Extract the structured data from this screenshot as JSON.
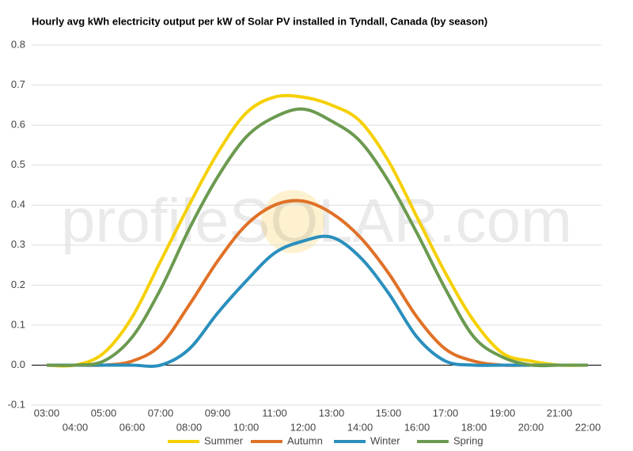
{
  "chart_data": {
    "type": "line",
    "title": "Hourly avg kWh electricity output per kW of Solar PV installed in Tyndall, Canada (by season)",
    "watermark": "profileSOLAR.com",
    "categories": [
      "03:00",
      "04:00",
      "05:00",
      "06:00",
      "07:00",
      "08:00",
      "09:00",
      "10:00",
      "11:00",
      "12:00",
      "13:00",
      "14:00",
      "15:00",
      "16:00",
      "17:00",
      "18:00",
      "19:00",
      "20:00",
      "21:00",
      "22:00"
    ],
    "series": [
      {
        "name": "Summer",
        "color": "#f5d000",
        "values": [
          0,
          0,
          0.03,
          0.12,
          0.26,
          0.4,
          0.53,
          0.63,
          0.67,
          0.67,
          0.65,
          0.61,
          0.51,
          0.37,
          0.23,
          0.11,
          0.03,
          0.01,
          0,
          0
        ]
      },
      {
        "name": "Autumn",
        "color": "#e07127",
        "values": [
          0,
          0,
          0,
          0.01,
          0.05,
          0.15,
          0.26,
          0.35,
          0.4,
          0.41,
          0.38,
          0.32,
          0.23,
          0.12,
          0.04,
          0.01,
          0,
          0,
          0,
          0
        ]
      },
      {
        "name": "Winter",
        "color": "#2a8fbd",
        "values": [
          0,
          0,
          0,
          0,
          0,
          0.04,
          0.13,
          0.21,
          0.28,
          0.31,
          0.32,
          0.27,
          0.18,
          0.07,
          0.01,
          0,
          0,
          0,
          0,
          0
        ]
      },
      {
        "name": "Spring",
        "color": "#6b9a4f",
        "values": [
          0,
          0,
          0.01,
          0.07,
          0.19,
          0.34,
          0.47,
          0.57,
          0.62,
          0.64,
          0.61,
          0.56,
          0.46,
          0.33,
          0.19,
          0.07,
          0.02,
          0,
          0,
          0
        ]
      }
    ],
    "ylim": [
      -0.1,
      0.8
    ],
    "yticks": [
      -0.1,
      {
        "value": 0,
        "label": "0.0"
      },
      0.1,
      0.2,
      0.3,
      0.4,
      0.5,
      0.6,
      0.7,
      0.8
    ],
    "grid": true
  }
}
